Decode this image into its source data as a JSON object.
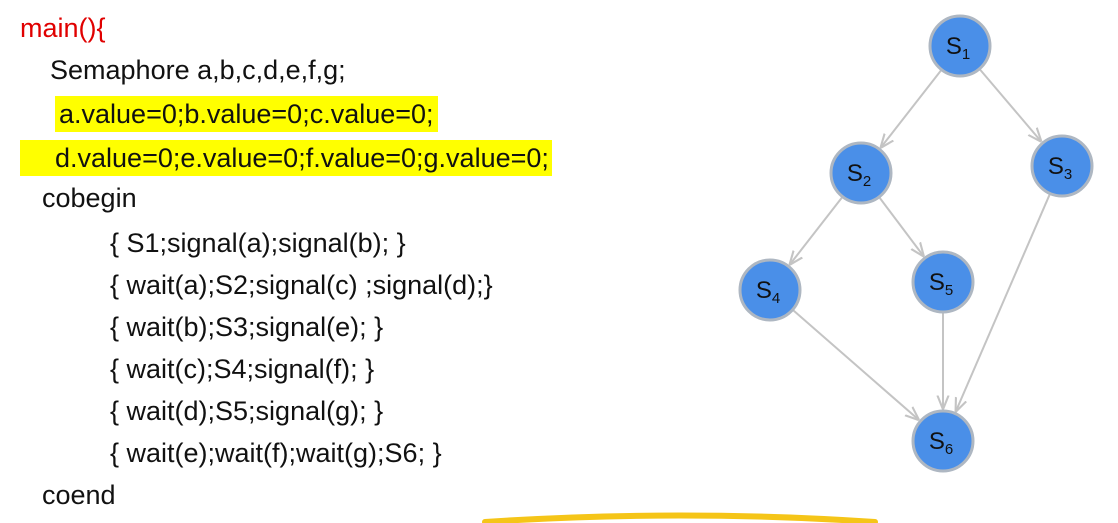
{
  "code": {
    "main_open": "main(){",
    "declare": "Semaphore a,b,c,d,e,f,g;",
    "init1": "a.value=0;b.value=0;c.value=0;",
    "init2": "d.value=0;e.value=0;f.value=0;g.value=0;",
    "cobegin": "cobegin",
    "p1": "{ S1;signal(a);signal(b); }",
    "p2": "{ wait(a);S2;signal(c) ;signal(d);}",
    "p3": "{ wait(b);S3;signal(e); }",
    "p4": "{ wait(c);S4;signal(f); }",
    "p5": "{ wait(d);S5;signal(g); }",
    "p6": "{ wait(e);wait(f);wait(g);S6; }",
    "coend": "coend"
  },
  "graph": {
    "node_color": "#4a8fe8",
    "node_border": "#aeb7c2",
    "edge_color": "#c4c4c4",
    "nodes": [
      {
        "id": "S1",
        "label": "S",
        "sub": "1"
      },
      {
        "id": "S2",
        "label": "S",
        "sub": "2"
      },
      {
        "id": "S3",
        "label": "S",
        "sub": "3"
      },
      {
        "id": "S4",
        "label": "S",
        "sub": "4"
      },
      {
        "id": "S5",
        "label": "S",
        "sub": "5"
      },
      {
        "id": "S6",
        "label": "S",
        "sub": "6"
      }
    ],
    "edges": [
      {
        "from": "S1",
        "to": "S2"
      },
      {
        "from": "S1",
        "to": "S3"
      },
      {
        "from": "S2",
        "to": "S4"
      },
      {
        "from": "S2",
        "to": "S5"
      },
      {
        "from": "S4",
        "to": "S6"
      },
      {
        "from": "S5",
        "to": "S6"
      },
      {
        "from": "S3",
        "to": "S6"
      }
    ]
  },
  "colors": {
    "keyword_red": "#e00000",
    "highlight": "#ffff00",
    "bottom_arc": "#f5c518"
  }
}
